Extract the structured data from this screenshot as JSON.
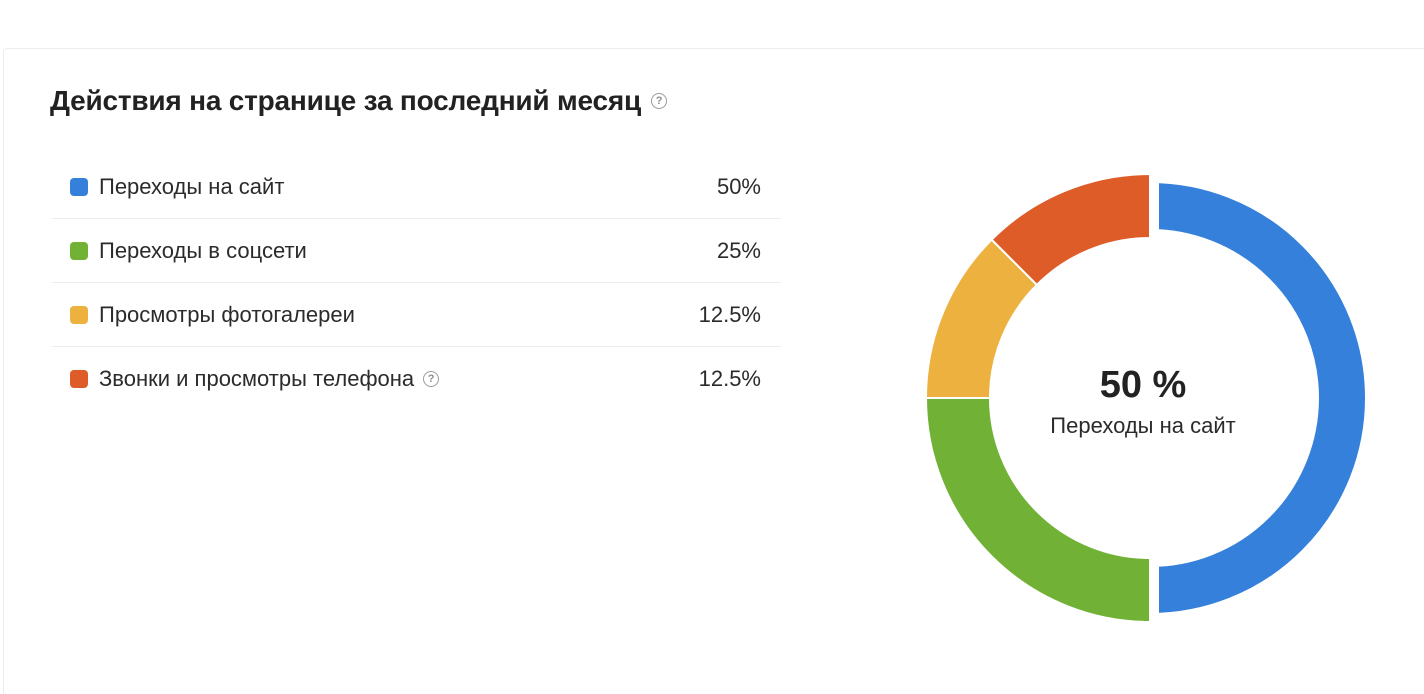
{
  "section": {
    "title": "Действия на странице за последний месяц",
    "help_icon": "question-circle-icon"
  },
  "legend": [
    {
      "label": "Переходы на сайт",
      "value": "50%",
      "color": "#3580da",
      "help": false
    },
    {
      "label": "Переходы в соцсети",
      "value": "25%",
      "color": "#71b236",
      "help": false
    },
    {
      "label": "Просмотры фотогалереи",
      "value": "12.5%",
      "color": "#ecb13e",
      "help": false
    },
    {
      "label": "Звонки и просмотры телефона",
      "value": "12.5%",
      "color": "#de5c28",
      "help": true
    }
  ],
  "center": {
    "value": "50 %",
    "label": "Переходы на сайт"
  },
  "chart_data": {
    "type": "pie",
    "style": "donut",
    "categories": [
      "Переходы на сайт",
      "Переходы в соцсети",
      "Просмотры фотогалереи",
      "Звонки и просмотры телефона"
    ],
    "values": [
      50,
      25,
      12.5,
      12.5
    ],
    "colors": [
      "#3580da",
      "#71b236",
      "#ecb13e",
      "#de5c28"
    ],
    "start": "top",
    "direction": "clockwise",
    "legend_placement": "left"
  }
}
